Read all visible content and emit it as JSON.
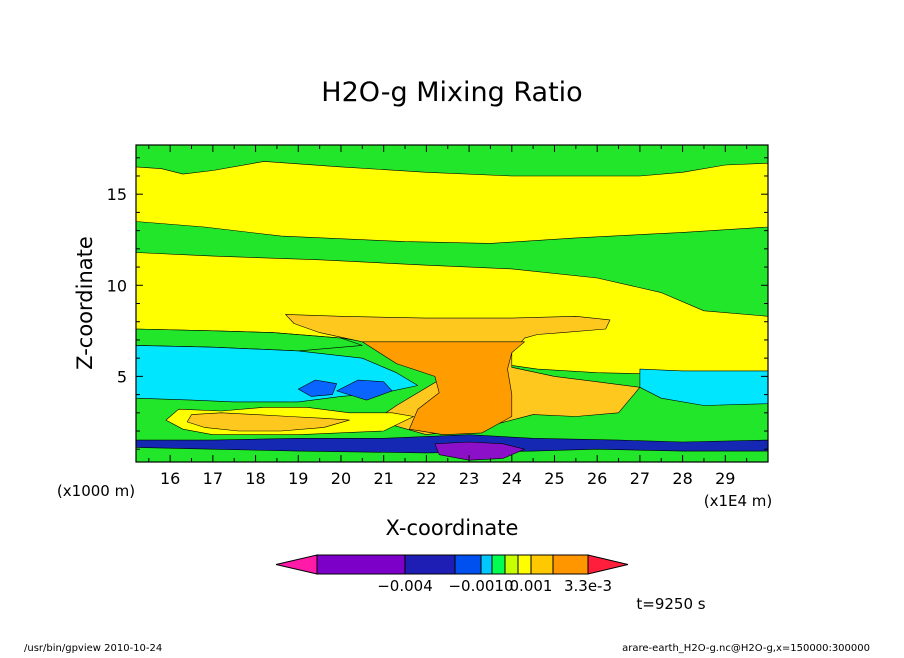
{
  "chart_data": {
    "type": "heatmap",
    "title": "H2O-g Mixing Ratio",
    "xlabel": "X-coordinate",
    "ylabel": "Z-coordinate",
    "x_unit_label": "(x1E4 m)",
    "y_unit_label": "(x1000 m)",
    "xlim": [
      15.2,
      30.0
    ],
    "ylim": [
      0.3,
      17.7
    ],
    "x_ticks": [
      "16",
      "17",
      "18",
      "19",
      "20",
      "21",
      "22",
      "23",
      "24",
      "25",
      "26",
      "27",
      "28",
      "29"
    ],
    "y_ticks": [
      "5",
      "10",
      "15"
    ],
    "time_label": "t=9250 s",
    "colorbar": {
      "labels": [
        "−0.004",
        "−0.0010",
        "0.001",
        "3.3e-3"
      ],
      "colors": [
        "#ff1aa8",
        "#7d00c8",
        "#1e1eb4",
        "#0050f0",
        "#00c8ff",
        "#00ff50",
        "#c8ff00",
        "#ffff00",
        "#ffc800",
        "#ff9600",
        "#ff5a00",
        "#ff1e3c"
      ]
    },
    "colors": {
      "green": "#21e629",
      "light_green": "#7dff00",
      "yellow": "#ffff00",
      "gold": "#ffc81e",
      "orange": "#ff9c00",
      "cyan": "#00e6ff",
      "blue": "#0a64ff",
      "navy": "#1428b4",
      "purple": "#8c10c8"
    },
    "regions": [
      {
        "name": "background",
        "color": "green",
        "points": [
          [
            15.2,
            0.3
          ],
          [
            30.0,
            0.3
          ],
          [
            30.0,
            17.7
          ],
          [
            15.2,
            17.7
          ]
        ]
      },
      {
        "name": "upper-yellow-layer",
        "color": "yellow",
        "points": [
          [
            15.2,
            13.5
          ],
          [
            16.8,
            13.2
          ],
          [
            18.6,
            12.7
          ],
          [
            21.5,
            12.4
          ],
          [
            23.5,
            12.3
          ],
          [
            25.5,
            12.6
          ],
          [
            28.0,
            12.9
          ],
          [
            30.0,
            13.2
          ],
          [
            30.0,
            16.7
          ],
          [
            29.0,
            16.6
          ],
          [
            28.0,
            16.2
          ],
          [
            27.0,
            16.0
          ],
          [
            24.0,
            16.0
          ],
          [
            22.0,
            16.2
          ],
          [
            20.0,
            16.5
          ],
          [
            18.2,
            16.8
          ],
          [
            17.0,
            16.3
          ],
          [
            16.3,
            16.1
          ],
          [
            15.8,
            16.4
          ],
          [
            15.2,
            16.5
          ]
        ]
      },
      {
        "name": "main-yellow-body",
        "color": "yellow",
        "points": [
          [
            15.2,
            11.8
          ],
          [
            17.0,
            11.6
          ],
          [
            19.5,
            11.4
          ],
          [
            22.0,
            11.1
          ],
          [
            24.0,
            10.9
          ],
          [
            26.0,
            10.4
          ],
          [
            27.5,
            9.6
          ],
          [
            28.5,
            8.6
          ],
          [
            30.0,
            8.3
          ],
          [
            30.0,
            4.9
          ],
          [
            28.0,
            5.1
          ],
          [
            26.0,
            5.2
          ],
          [
            24.6,
            5.4
          ],
          [
            24.0,
            5.6
          ],
          [
            23.4,
            6.2
          ],
          [
            22.4,
            6.3
          ],
          [
            21.5,
            6.6
          ],
          [
            20.0,
            7.1
          ],
          [
            18.4,
            7.4
          ],
          [
            17.0,
            7.5
          ],
          [
            15.2,
            7.6
          ]
        ]
      },
      {
        "name": "mid-light-green-band",
        "color": "green",
        "points": [
          [
            15.2,
            7.6
          ],
          [
            17.0,
            7.5
          ],
          [
            18.4,
            7.4
          ],
          [
            20.0,
            7.1
          ],
          [
            20.5,
            6.7
          ],
          [
            19.0,
            6.4
          ],
          [
            17.0,
            6.6
          ],
          [
            15.2,
            6.7
          ]
        ]
      },
      {
        "name": "cyan-left-layer",
        "color": "cyan",
        "points": [
          [
            15.2,
            6.7
          ],
          [
            17.0,
            6.6
          ],
          [
            19.0,
            6.4
          ],
          [
            20.5,
            6.0
          ],
          [
            21.3,
            5.2
          ],
          [
            21.8,
            4.5
          ],
          [
            21.0,
            4.1
          ],
          [
            20.0,
            3.9
          ],
          [
            19.0,
            3.6
          ],
          [
            17.5,
            3.6
          ],
          [
            16.5,
            3.7
          ],
          [
            15.2,
            3.8
          ]
        ]
      },
      {
        "name": "cyan-right-layer",
        "color": "cyan",
        "points": [
          [
            27.0,
            5.4
          ],
          [
            28.0,
            5.3
          ],
          [
            30.0,
            5.3
          ],
          [
            30.0,
            3.5
          ],
          [
            28.5,
            3.4
          ],
          [
            27.5,
            3.8
          ],
          [
            27.0,
            4.4
          ]
        ]
      },
      {
        "name": "gold-anvil",
        "color": "gold",
        "points": [
          [
            18.7,
            8.4
          ],
          [
            20.0,
            8.3
          ],
          [
            22.0,
            8.2
          ],
          [
            24.0,
            8.2
          ],
          [
            25.5,
            8.3
          ],
          [
            26.3,
            8.1
          ],
          [
            26.2,
            7.6
          ],
          [
            25.2,
            7.4
          ],
          [
            24.6,
            7.3
          ],
          [
            24.3,
            7.1
          ],
          [
            24.0,
            6.3
          ],
          [
            24.0,
            5.5
          ],
          [
            25.0,
            5.0
          ],
          [
            26.0,
            4.7
          ],
          [
            27.0,
            4.4
          ],
          [
            26.5,
            3.0
          ],
          [
            25.5,
            2.8
          ],
          [
            24.5,
            2.9
          ],
          [
            23.5,
            2.3
          ],
          [
            22.0,
            1.8
          ],
          [
            20.8,
            2.6
          ],
          [
            21.3,
            3.4
          ],
          [
            22.3,
            4.8
          ],
          [
            23.3,
            6.0
          ],
          [
            22.0,
            6.5
          ],
          [
            20.5,
            6.9
          ],
          [
            19.5,
            7.4
          ],
          [
            18.9,
            7.9
          ]
        ]
      },
      {
        "name": "orange-core",
        "color": "orange",
        "points": [
          [
            20.5,
            6.9
          ],
          [
            21.5,
            6.9
          ],
          [
            23.0,
            6.9
          ],
          [
            24.3,
            6.9
          ],
          [
            24.0,
            6.3
          ],
          [
            23.9,
            5.4
          ],
          [
            24.0,
            4.0
          ],
          [
            24.0,
            2.8
          ],
          [
            23.3,
            1.9
          ],
          [
            22.4,
            1.8
          ],
          [
            21.6,
            2.1
          ],
          [
            21.8,
            3.2
          ],
          [
            22.3,
            4.1
          ],
          [
            22.2,
            5.0
          ],
          [
            21.3,
            5.7
          ]
        ]
      },
      {
        "name": "yellow-lower-band",
        "color": "yellow",
        "points": [
          [
            16.2,
            3.2
          ],
          [
            17.2,
            3.1
          ],
          [
            18.2,
            3.3
          ],
          [
            19.2,
            3.3
          ],
          [
            20.2,
            3.0
          ],
          [
            21.2,
            3.0
          ],
          [
            21.7,
            2.8
          ],
          [
            21.0,
            2.0
          ],
          [
            19.0,
            1.8
          ],
          [
            17.0,
            1.8
          ],
          [
            16.3,
            2.1
          ],
          [
            15.9,
            2.6
          ]
        ]
      },
      {
        "name": "gold-lower-patch",
        "color": "gold",
        "points": [
          [
            16.5,
            2.9
          ],
          [
            17.2,
            3.0
          ],
          [
            18.0,
            2.9
          ],
          [
            18.8,
            2.8
          ],
          [
            19.6,
            2.7
          ],
          [
            20.2,
            2.6
          ],
          [
            19.6,
            2.2
          ],
          [
            18.6,
            2.0
          ],
          [
            17.6,
            2.0
          ],
          [
            16.8,
            2.2
          ],
          [
            16.4,
            2.5
          ]
        ]
      },
      {
        "name": "navy-surface-band",
        "color": "navy",
        "points": [
          [
            15.2,
            1.5
          ],
          [
            17.0,
            1.5
          ],
          [
            19.0,
            1.6
          ],
          [
            21.0,
            1.6
          ],
          [
            23.0,
            1.8
          ],
          [
            24.5,
            1.6
          ],
          [
            26.5,
            1.5
          ],
          [
            28.0,
            1.4
          ],
          [
            30.0,
            1.5
          ],
          [
            30.0,
            0.9
          ],
          [
            28.0,
            0.9
          ],
          [
            26.0,
            1.0
          ],
          [
            24.5,
            0.9
          ],
          [
            22.0,
            0.8
          ],
          [
            19.0,
            0.9
          ],
          [
            17.0,
            1.0
          ],
          [
            15.2,
            1.1
          ]
        ]
      },
      {
        "name": "purple-surface-core",
        "color": "purple",
        "points": [
          [
            22.2,
            1.3
          ],
          [
            23.0,
            1.4
          ],
          [
            23.8,
            1.3
          ],
          [
            24.3,
            1.0
          ],
          [
            23.8,
            0.5
          ],
          [
            23.0,
            0.4
          ],
          [
            22.3,
            0.7
          ]
        ]
      },
      {
        "name": "blue-blob-left",
        "color": "blue",
        "points": [
          [
            19.0,
            4.3
          ],
          [
            19.4,
            4.8
          ],
          [
            19.9,
            4.6
          ],
          [
            19.8,
            4.0
          ],
          [
            19.3,
            3.9
          ]
        ]
      },
      {
        "name": "blue-blob-right",
        "color": "blue",
        "points": [
          [
            19.9,
            4.2
          ],
          [
            20.4,
            4.8
          ],
          [
            21.0,
            4.7
          ],
          [
            21.2,
            4.2
          ],
          [
            20.6,
            3.7
          ]
        ]
      }
    ]
  },
  "footer": {
    "left": "/usr/bin/gpview   2010-10-24",
    "right": "arare-earth_H2O-g.nc@H2O-g,x=150000:300000"
  }
}
